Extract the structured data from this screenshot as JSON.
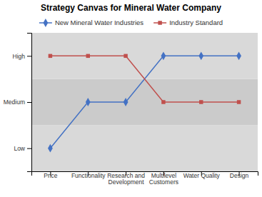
{
  "chart_data": {
    "type": "line",
    "title": "Strategy Canvas for Mineral Water Company",
    "categories": [
      "Price",
      "Functionality",
      "Research and\nDevelopment",
      "Multilevel\nCustomers",
      "Water Quality",
      "Design"
    ],
    "series": [
      {
        "name": "New Mineral Water Industries",
        "values": [
          1,
          2,
          2,
          3,
          3,
          3
        ],
        "color": "#4472C4",
        "marker": "diamond"
      },
      {
        "name": "Industry Standard",
        "values": [
          3,
          3,
          3,
          2,
          2,
          2
        ],
        "color": "#C0504D",
        "marker": "square"
      }
    ],
    "ylim": [
      0.5,
      3.5
    ],
    "yticks": [
      {
        "value": 1,
        "label": "Low"
      },
      {
        "value": 2,
        "label": "Medium"
      },
      {
        "value": 3,
        "label": "High"
      }
    ],
    "bands": [
      {
        "range": [
          0.5,
          1.5
        ],
        "color": "#D9D9D9"
      },
      {
        "range": [
          1.5,
          2.5
        ],
        "color": "#CBCBCB"
      },
      {
        "range": [
          2.5,
          3.5
        ],
        "color": "#D9D9D9"
      }
    ],
    "grid": false
  }
}
